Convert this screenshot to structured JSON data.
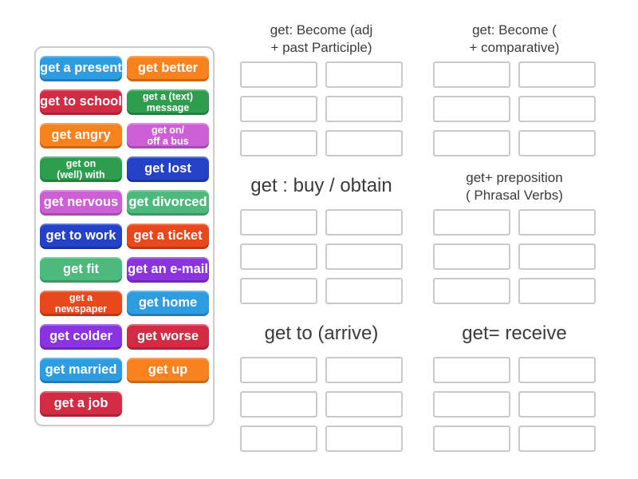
{
  "background": "#ffffff",
  "styles": {
    "header_text_color": "#3b3b3b",
    "tile_text_color": "#ffffff",
    "slot_border_color": "#c9c9c9",
    "panel_border_color": "#cccccc",
    "palette": {
      "dodger_blue": "#2D9CE1",
      "orange": "#F8821D",
      "crimson": "#D12C43",
      "forest_green": "#2E9E4E",
      "orchid": "#CD5FD6",
      "royal_blue": "#2342C8",
      "sea_green": "#4DBA7D",
      "orange_red": "#E9481D",
      "blue_violet": "#8A33E0"
    }
  },
  "tile_panel": {
    "tiles": [
      {
        "label": "get a present",
        "color": "#2D9CE1"
      },
      {
        "label": "get better",
        "color": "#F8821D"
      },
      {
        "label": "get to school",
        "color": "#D12C43"
      },
      {
        "label": "get a (text)\nmessage",
        "color": "#2E9E4E"
      },
      {
        "label": "get angry",
        "color": "#F8821D"
      },
      {
        "label": "get on/\noff a bus",
        "color": "#CD5FD6"
      },
      {
        "label": "get on\n(well) with",
        "color": "#2E9E4E"
      },
      {
        "label": "get lost",
        "color": "#2342C8"
      },
      {
        "label": "get nervous",
        "color": "#CD5FD6"
      },
      {
        "label": "get divorced",
        "color": "#4DBA7D"
      },
      {
        "label": "get to work",
        "color": "#2342C8"
      },
      {
        "label": "get a ticket",
        "color": "#E9481D"
      },
      {
        "label": "get fit",
        "color": "#4DBA7D"
      },
      {
        "label": "get an e-mail",
        "color": "#8A33E0"
      },
      {
        "label": "get a\nnewspaper",
        "color": "#E9481D"
      },
      {
        "label": "get home",
        "color": "#2D9CE1"
      },
      {
        "label": "get colder",
        "color": "#8A33E0"
      },
      {
        "label": "get worse",
        "color": "#D12C43"
      },
      {
        "label": "get married",
        "color": "#2D9CE1"
      },
      {
        "label": "get up",
        "color": "#F8821D"
      },
      {
        "label": "get a job",
        "color": "#D12C43"
      }
    ]
  },
  "board": {
    "groups": [
      {
        "label": "get: Become (adj\n+ past Participle)",
        "slot_count": 6
      },
      {
        "label": "get: Become (\n+ comparative)",
        "slot_count": 6
      },
      {
        "label": "get : buy / obtain",
        "slot_count": 6
      },
      {
        "label": "get+ preposition\n( Phrasal Verbs)",
        "slot_count": 6
      },
      {
        "label": "get to (arrive)",
        "slot_count": 6
      },
      {
        "label": "get= receive",
        "slot_count": 6
      }
    ]
  }
}
